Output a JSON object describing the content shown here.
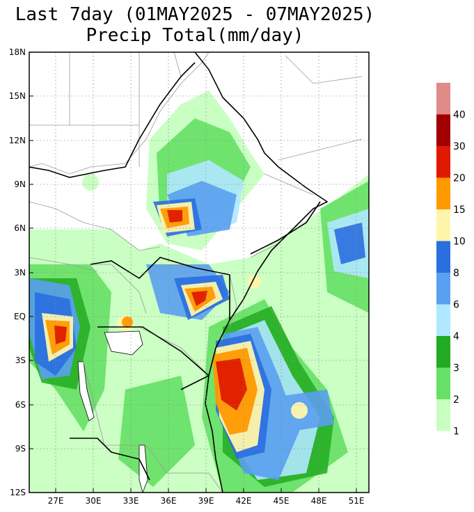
{
  "title_line1": "Last 7day (01MAY2025 - 07MAY2025)",
  "title_line2": "Precip Total(mm/day)",
  "lon_labels": [
    "27E",
    "30E",
    "33E",
    "36E",
    "39E",
    "42E",
    "45E",
    "48E",
    "51E"
  ],
  "lat_labels": [
    "18N",
    "15N",
    "12N",
    "9N",
    "6N",
    "3N",
    "EQ",
    "3S",
    "6S",
    "9S",
    "12S"
  ],
  "colorbar": {
    "bins": [
      {
        "color": "#e08a8a"
      },
      {
        "color": "#a00000",
        "label": "40"
      },
      {
        "color": "#e01a00",
        "label": "30"
      },
      {
        "color": "#ff9900",
        "label": "20"
      },
      {
        "color": "#fff5aa",
        "label": "15"
      },
      {
        "color": "#2a6fe0",
        "label": "10"
      },
      {
        "color": "#5aa0f0",
        "label": "8"
      },
      {
        "color": "#b0e8ff",
        "label": "6"
      },
      {
        "color": "#22aa22",
        "label": "4"
      },
      {
        "color": "#66e066",
        "label": "3"
      },
      {
        "color": "#c8ffc0",
        "label": "2"
      },
      {
        "label": "1"
      }
    ]
  }
}
